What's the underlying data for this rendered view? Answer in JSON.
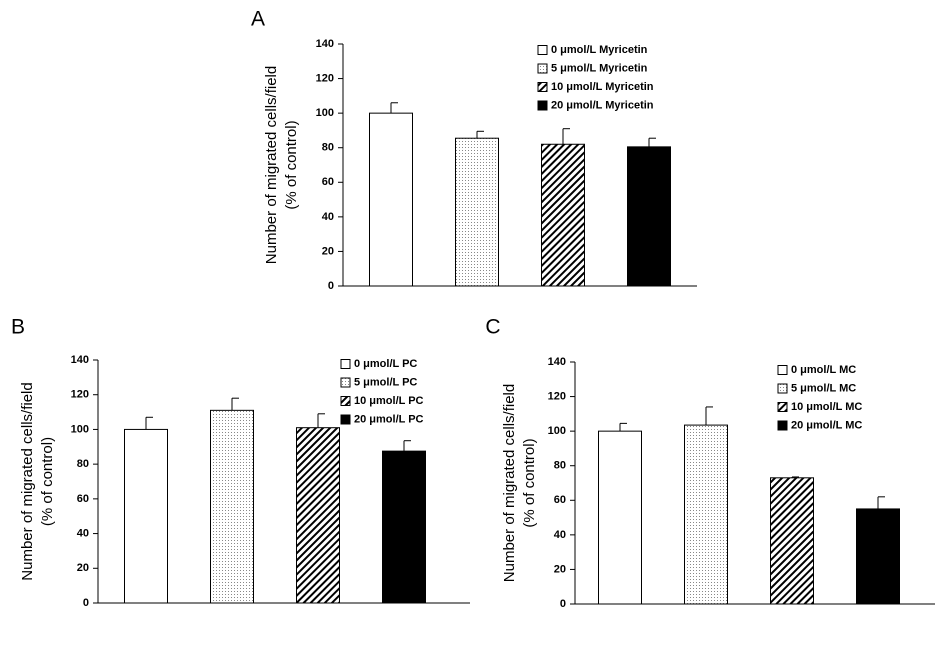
{
  "chart_data": [
    {
      "type": "bar",
      "panel_label": "A",
      "ylabel": [
        "Number of migrated cells/field",
        "(% of control)"
      ],
      "ylim": [
        0,
        140
      ],
      "yticks": [
        0,
        20,
        40,
        60,
        80,
        100,
        120,
        140
      ],
      "series": [
        {
          "name": "0 μmol/L Myricetin",
          "pattern": "open",
          "color": "#ffffff",
          "values": [
            100
          ],
          "errors": [
            6
          ]
        },
        {
          "name": "5 μmol/L Myricetin",
          "pattern": "dots",
          "color": "#cccccc",
          "values": [
            85.5
          ],
          "errors": [
            4
          ]
        },
        {
          "name": "10 μmol/L Myricetin",
          "pattern": "hatch",
          "color": "#000000",
          "values": [
            82
          ],
          "errors": [
            9
          ]
        },
        {
          "name": "20 μmol/L Myricetin",
          "pattern": "solid",
          "color": "#000000",
          "values": [
            80.5
          ],
          "errors": [
            5
          ]
        }
      ]
    },
    {
      "type": "bar",
      "panel_label": "B",
      "ylabel": [
        "Number of migrated cells/field",
        "(% of control)"
      ],
      "ylim": [
        0,
        140
      ],
      "yticks": [
        0,
        20,
        40,
        60,
        80,
        100,
        120,
        140
      ],
      "series": [
        {
          "name": "0 μmol/L PC",
          "pattern": "open",
          "color": "#ffffff",
          "values": [
            100
          ],
          "errors": [
            7
          ]
        },
        {
          "name": "5 μmol/L PC",
          "pattern": "dots",
          "color": "#cccccc",
          "values": [
            111
          ],
          "errors": [
            7
          ]
        },
        {
          "name": "10 μmol/L PC",
          "pattern": "hatch",
          "color": "#000000",
          "values": [
            101
          ],
          "errors": [
            8
          ]
        },
        {
          "name": "20 μmol/L PC",
          "pattern": "solid",
          "color": "#000000",
          "values": [
            87.5
          ],
          "errors": [
            6
          ]
        }
      ]
    },
    {
      "type": "bar",
      "panel_label": "C",
      "ylabel": [
        "Number of migrated cells/field",
        "(% of control)"
      ],
      "ylim": [
        0,
        140
      ],
      "yticks": [
        0,
        20,
        40,
        60,
        80,
        100,
        120,
        140
      ],
      "series": [
        {
          "name": "0 μmol/L MC",
          "pattern": "open",
          "color": "#ffffff",
          "values": [
            100
          ],
          "errors": [
            4.5
          ]
        },
        {
          "name": "5 μmol/L MC",
          "pattern": "dots",
          "color": "#cccccc",
          "values": [
            103.5
          ],
          "errors": [
            10.5
          ]
        },
        {
          "name": "10 μmol/L MC",
          "pattern": "hatch",
          "color": "#000000",
          "values": [
            73
          ],
          "errors": [
            0.5
          ]
        },
        {
          "name": "20 μmol/L MC",
          "pattern": "solid",
          "color": "#000000",
          "values": [
            55
          ],
          "errors": [
            7
          ]
        }
      ]
    }
  ]
}
